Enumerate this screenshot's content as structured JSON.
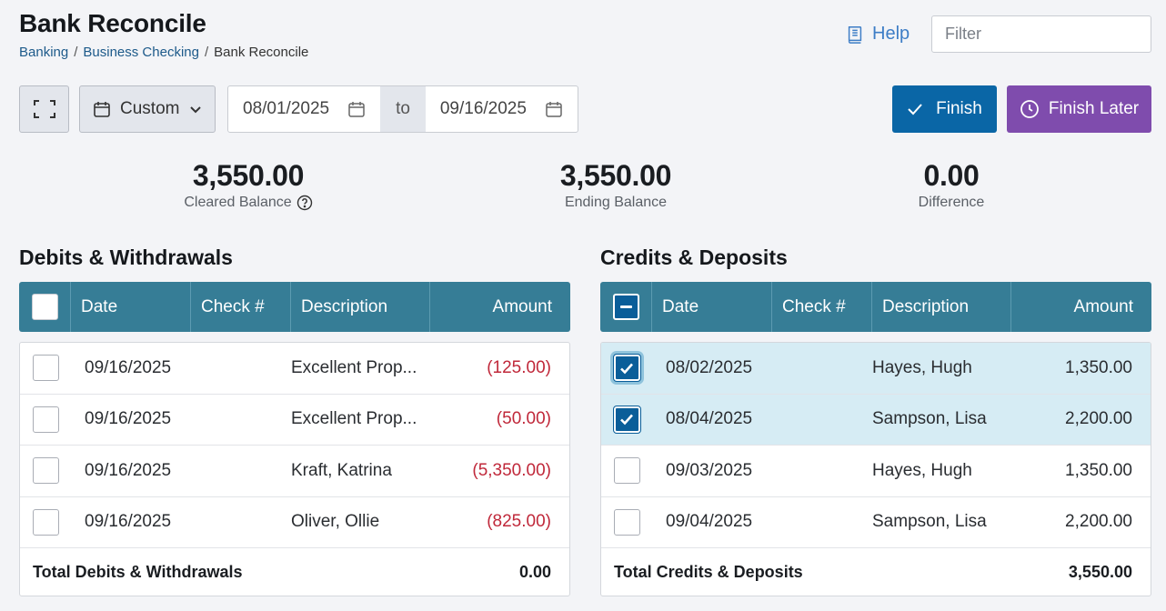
{
  "page": {
    "title": "Bank Reconcile"
  },
  "breadcrumb": [
    {
      "label": "Banking"
    },
    {
      "label": "Business Checking"
    },
    {
      "label": "Bank Reconcile"
    }
  ],
  "help": {
    "label": "Help"
  },
  "filter": {
    "placeholder": "Filter"
  },
  "range": {
    "preset": "Custom",
    "from": "08/01/2025",
    "to_label": "to",
    "to": "09/16/2025"
  },
  "actions": {
    "finish": "Finish",
    "finish_later": "Finish Later"
  },
  "summary": {
    "cleared": {
      "value": "3,550.00",
      "label": "Cleared Balance"
    },
    "ending": {
      "value": "3,550.00",
      "label": "Ending Balance"
    },
    "difference": {
      "value": "0.00",
      "label": "Difference"
    }
  },
  "columns": {
    "date": "Date",
    "check": "Check #",
    "description": "Description",
    "amount": "Amount"
  },
  "debits": {
    "title": "Debits & Withdrawals",
    "rows": [
      {
        "date": "09/16/2025",
        "check": "",
        "description": "Excellent Prop...",
        "amount": "(125.00)"
      },
      {
        "date": "09/16/2025",
        "check": "",
        "description": "Excellent Prop...",
        "amount": "(50.00)"
      },
      {
        "date": "09/16/2025",
        "check": "",
        "description": "Kraft, Katrina",
        "amount": "(5,350.00)"
      },
      {
        "date": "09/16/2025",
        "check": "",
        "description": "Oliver, Ollie",
        "amount": "(825.00)"
      }
    ],
    "total_label": "Total Debits & Withdrawals",
    "total_value": "0.00"
  },
  "credits": {
    "title": "Credits & Deposits",
    "rows": [
      {
        "date": "08/02/2025",
        "check": "",
        "description": "Hayes, Hugh",
        "amount": "1,350.00",
        "checked": true
      },
      {
        "date": "08/04/2025",
        "check": "",
        "description": "Sampson, Lisa",
        "amount": "2,200.00",
        "checked": true
      },
      {
        "date": "09/03/2025",
        "check": "",
        "description": "Hayes, Hugh",
        "amount": "1,350.00",
        "checked": false
      },
      {
        "date": "09/04/2025",
        "check": "",
        "description": "Sampson, Lisa",
        "amount": "2,200.00",
        "checked": false
      }
    ],
    "total_label": "Total Credits & Deposits",
    "total_value": "3,550.00"
  },
  "colors": {
    "header": "#367d96",
    "primary": "#0a66a6",
    "secondary": "#7f4cad",
    "negative": "#c0283a",
    "selected_row": "#d6ecf4"
  }
}
